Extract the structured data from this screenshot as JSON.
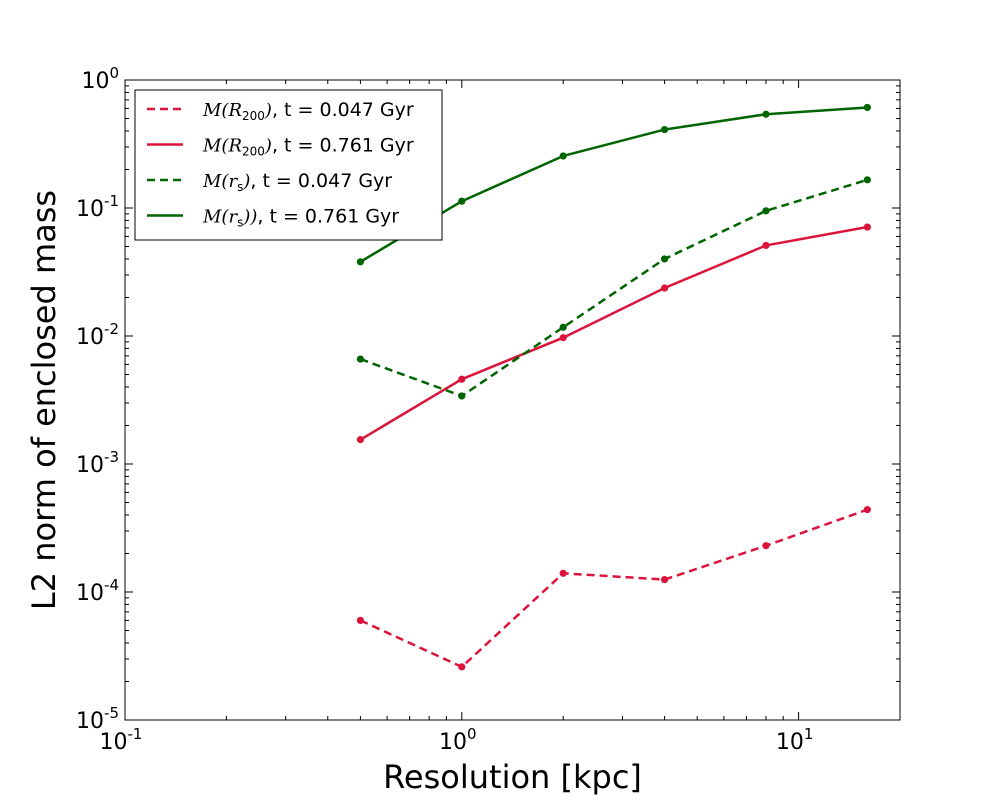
{
  "chart_data": {
    "type": "line",
    "title": "",
    "xlabel": "Resolution [kpc]",
    "ylabel": "L2 norm of enclosed mass",
    "xscale": "log",
    "yscale": "log",
    "xlim": [
      0.1,
      20
    ],
    "ylim": [
      1e-05,
      1
    ],
    "x_ticks": [
      {
        "value": 0.1,
        "base": "10",
        "exp": "-1"
      },
      {
        "value": 1,
        "base": "10",
        "exp": "0"
      },
      {
        "value": 10,
        "base": "10",
        "exp": "1"
      }
    ],
    "y_ticks": [
      {
        "value": 1e-05,
        "base": "10",
        "exp": "-5"
      },
      {
        "value": 0.0001,
        "base": "10",
        "exp": "-4"
      },
      {
        "value": 0.001,
        "base": "10",
        "exp": "-3"
      },
      {
        "value": 0.01,
        "base": "10",
        "exp": "-2"
      },
      {
        "value": 0.1,
        "base": "10",
        "exp": "-1"
      },
      {
        "value": 1,
        "base": "10",
        "exp": "0"
      }
    ],
    "legend_position": "upper-left",
    "x": [
      0.5,
      1,
      2,
      4,
      8,
      16
    ],
    "series": [
      {
        "name": "M(R200), t = 0.047 Gyr",
        "math_base": "M(R",
        "math_sub": "200",
        "math_close": ")",
        "suffix": ", t = 0.047 Gyr",
        "color": "#dc143c",
        "dash": true,
        "values": [
          6e-05,
          2.6e-05,
          0.00014,
          0.000125,
          0.00023,
          0.00044
        ]
      },
      {
        "name": "M(R200), t = 0.761 Gyr",
        "math_base": "M(R",
        "math_sub": "200",
        "math_close": ")",
        "suffix": ", t = 0.761 Gyr",
        "color": "#dc143c",
        "dash": false,
        "values": [
          0.00155,
          0.0046,
          0.0097,
          0.0237,
          0.051,
          0.071
        ]
      },
      {
        "name": "M(rs), t = 0.047 Gyr",
        "math_base": "M(r",
        "math_sub": "s",
        "math_close": ")",
        "suffix": ", t = 0.047 Gyr",
        "color": "#006400",
        "dash": true,
        "values": [
          0.0066,
          0.0034,
          0.0117,
          0.04,
          0.095,
          0.166
        ]
      },
      {
        "name": "M(rs)), t = 0.761 Gyr",
        "math_base": "M(r",
        "math_sub": "s",
        "math_close": "))",
        "suffix": ", t = 0.761 Gyr",
        "color": "#006400",
        "dash": false,
        "values": [
          0.038,
          0.113,
          0.255,
          0.41,
          0.54,
          0.61
        ]
      }
    ]
  }
}
